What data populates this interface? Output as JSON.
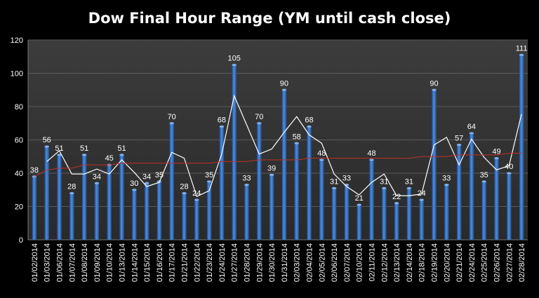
{
  "chart_data": {
    "type": "bar",
    "title": "Dow Final Hour Range (YM until cash close)",
    "xlabel": "",
    "ylabel": "",
    "ylim": [
      0,
      120
    ],
    "yticks": [
      0,
      20,
      40,
      60,
      80,
      100,
      120
    ],
    "categories": [
      "01/02/2014",
      "01/03/2014",
      "01/06/2014",
      "01/07/2014",
      "01/08/2014",
      "01/09/2014",
      "01/10/2014",
      "01/13/2014",
      "01/14/2014",
      "01/15/2014",
      "01/16/2014",
      "01/17/2014",
      "01/21/2014",
      "01/22/2014",
      "01/23/2014",
      "01/24/2014",
      "01/27/2014",
      "01/28/2014",
      "01/29/2014",
      "01/30/2014",
      "01/31/2014",
      "02/03/2014",
      "02/04/2014",
      "02/05/2014",
      "02/06/2014",
      "02/07/2014",
      "02/10/2014",
      "02/11/2014",
      "02/12/2014",
      "02/13/2014",
      "02/14/2014",
      "02/18/2014",
      "02/19/2014",
      "02/20/2014",
      "02/21/2014",
      "02/24/2014",
      "02/25/2014",
      "02/26/2014",
      "02/27/2014",
      "02/28/2014"
    ],
    "series": [
      {
        "type": "bar",
        "values": [
          38,
          56,
          51,
          28,
          51,
          34,
          45,
          51,
          30,
          34,
          35,
          70,
          28,
          24,
          35,
          68,
          105,
          33,
          70,
          39,
          90,
          58,
          68,
          48,
          31,
          33,
          21,
          48,
          31,
          22,
          31,
          24,
          90,
          33,
          57,
          64,
          35,
          49,
          40,
          111
        ],
        "color": "#3b73c8"
      },
      {
        "type": "line",
        "values": [
          null,
          47,
          53.5,
          39.5,
          39.5,
          42.5,
          39.5,
          48,
          40.5,
          32,
          34.5,
          52.5,
          49,
          26,
          29.5,
          51.5,
          86.5,
          69,
          51.5,
          54.5,
          64.5,
          74,
          63,
          58,
          39.5,
          32,
          27,
          34.5,
          39.5,
          26.5,
          26.5,
          27.5,
          57,
          61.5,
          45,
          60.5,
          49.5,
          42,
          44.5,
          75.5
        ],
        "color": "#ffffff"
      },
      {
        "type": "line",
        "values": [
          38,
          42,
          43,
          43,
          45,
          45,
          45,
          46,
          46,
          46,
          46,
          46,
          46,
          46,
          46,
          47,
          47,
          47,
          48,
          48,
          48,
          48,
          49,
          49,
          49,
          49,
          49,
          49,
          49,
          49,
          49,
          50,
          50,
          50,
          51,
          51,
          51,
          51,
          52,
          52
        ],
        "color": "#c0302a"
      }
    ],
    "grid": true,
    "legend": "none"
  }
}
